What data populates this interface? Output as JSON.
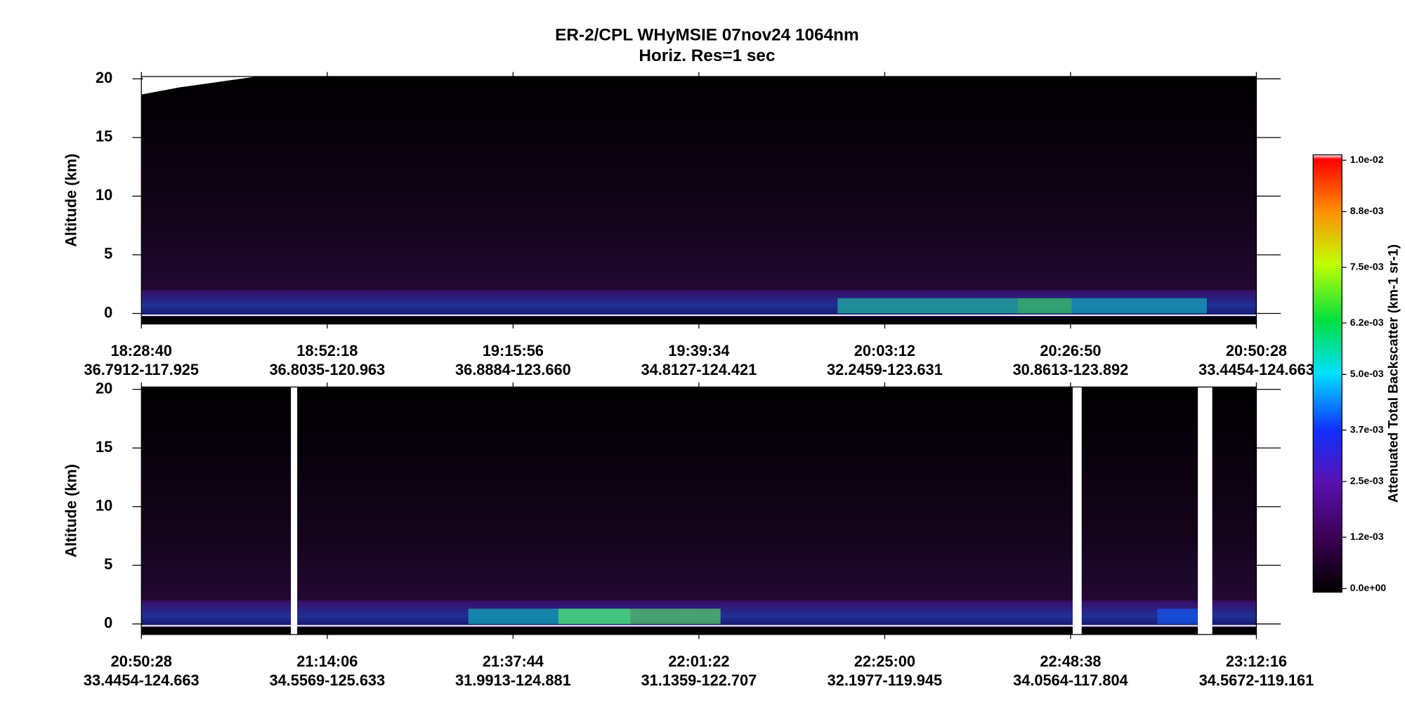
{
  "chart_data": {
    "type": "curtain",
    "title": "ER-2/CPL  WHyMSIE  07nov24  1064nm",
    "subtitle": "Horiz. Res=1 sec",
    "y_label": "Altitude (km)",
    "ylim": [
      -0.9,
      20.2
    ],
    "yticks": [
      0,
      5,
      10,
      15,
      20
    ],
    "panels": [
      {
        "times": [
          "18:28:40",
          "18:52:18",
          "19:15:56",
          "19:39:34",
          "20:03:12",
          "20:26:50",
          "20:50:28"
        ],
        "positions": [
          "36.7912-117.925",
          "36.8035-120.963",
          "36.8884-123.660",
          "34.8127-124.421",
          "32.2459-123.631",
          "30.8613-123.892",
          "33.4454-124.663"
        ]
      },
      {
        "times": [
          "20:50:28",
          "21:14:06",
          "21:37:44",
          "22:01:22",
          "22:25:00",
          "22:48:38",
          "23:12:16"
        ],
        "positions": [
          "33.4454-124.663",
          "34.5569-125.633",
          "31.9913-124.881",
          "31.1359-122.707",
          "32.1977-119.945",
          "34.0564-117.804",
          "34.5672-119.161"
        ]
      }
    ],
    "colorbar": {
      "label": "Attenuated Total Backscatter (km-1 sr-1)",
      "lim": [
        0,
        0.01
      ],
      "ticks": [
        {
          "value": 0,
          "label": "0.0e+00"
        },
        {
          "value": 0.0012,
          "label": "1.2e-03"
        },
        {
          "value": 0.0025,
          "label": "2.5e-03"
        },
        {
          "value": 0.0037,
          "label": "3.7e-03"
        },
        {
          "value": 0.005,
          "label": "5.0e-03"
        },
        {
          "value": 0.0062,
          "label": "6.2e-03"
        },
        {
          "value": 0.0075,
          "label": "7.5e-03"
        },
        {
          "value": 0.0088,
          "label": "8.8e-03"
        },
        {
          "value": 0.01,
          "label": "1.0e-02"
        }
      ]
    }
  }
}
